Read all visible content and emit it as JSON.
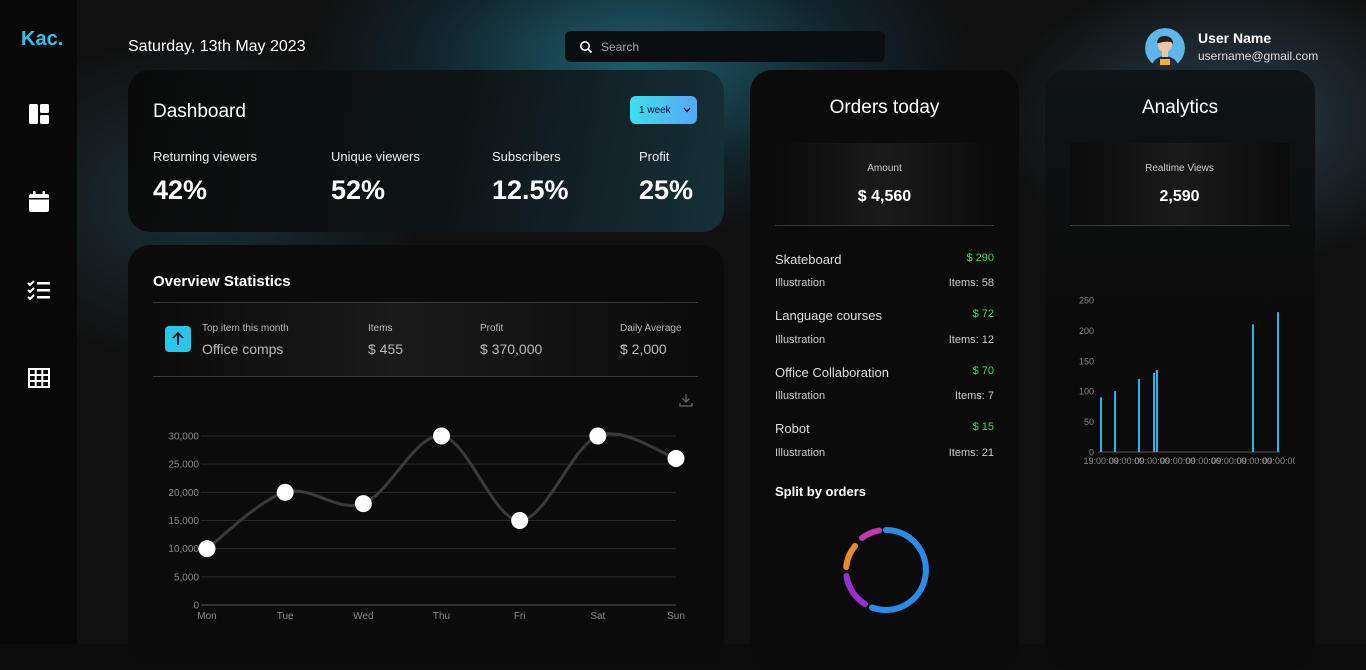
{
  "app": {
    "logo": "Kac."
  },
  "header": {
    "date": "Saturday, 13th May 2023",
    "search_placeholder": "Search",
    "user_name": "User Name",
    "user_email": "username@gmail.com"
  },
  "sidebar": {
    "icons": [
      "dashboard-icon",
      "calendar-icon",
      "checklist-icon",
      "table-icon"
    ]
  },
  "dashboard": {
    "title": "Dashboard",
    "range": "1 week",
    "stats": [
      {
        "label": "Returning viewers",
        "value": "42%"
      },
      {
        "label": "Unique viewers",
        "value": "52%"
      },
      {
        "label": "Subscribers",
        "value": "12.5%"
      },
      {
        "label": "Profit",
        "value": "25%"
      }
    ]
  },
  "overview": {
    "title": "Overview Statistics",
    "top_item_label": "Top item this month",
    "top_item_value": "Office comps",
    "items_label": "Items",
    "items_value": "$ 455",
    "profit_label": "Profit",
    "profit_value": "$ 370,000",
    "avg_label": "Daily Average",
    "avg_value": "$ 2,000"
  },
  "orders": {
    "title": "Orders today",
    "amount_label": "Amount",
    "amount_value": "$ 4,560",
    "list": [
      {
        "name": "Skateboard",
        "price": "$ 290",
        "category": "Illustration",
        "items": "Items: 58"
      },
      {
        "name": "Language courses",
        "price": "$ 72",
        "category": "Illustration",
        "items": "Items: 12"
      },
      {
        "name": "Office Collaboration",
        "price": "$ 70",
        "category": "Illustration",
        "items": "Items: 7"
      },
      {
        "name": "Robot",
        "price": "$ 15",
        "category": "Illustration",
        "items": "Items: 21"
      }
    ],
    "split_title": "Split by orders"
  },
  "analytics": {
    "title": "Analytics",
    "views_label": "Realtime Views",
    "views_value": "2,590"
  },
  "colors": {
    "accent": "#2ec4f0",
    "price_green": "#3ddc55",
    "donut": [
      "#2a8ce8",
      "#9b2fd1",
      "#e98a2c",
      "#c03aa8"
    ]
  },
  "chart_data": [
    {
      "type": "line",
      "categories": [
        "Mon",
        "Tue",
        "Wed",
        "Thu",
        "Fri",
        "Sat",
        "Sun"
      ],
      "values": [
        10000,
        20000,
        18000,
        30000,
        15000,
        30000,
        26000
      ],
      "y_ticks": [
        "0",
        "5,000",
        "10,000",
        "15,000",
        "20,000",
        "25,000",
        "30,000"
      ],
      "ylim": [
        0,
        30000
      ],
      "grid": true
    },
    {
      "type": "bar",
      "x_ticks": [
        "19:00:00",
        "09:00:00",
        "09:00:00",
        "09:00:00",
        "09:00:00",
        "09:00:00",
        "09:00:00",
        "09:00:00"
      ],
      "y_ticks": [
        "0",
        "50",
        "100",
        "150",
        "200",
        "250"
      ],
      "values": [
        90,
        100,
        120,
        130,
        135,
        210,
        230
      ],
      "ylim": [
        0,
        250
      ]
    }
  ]
}
